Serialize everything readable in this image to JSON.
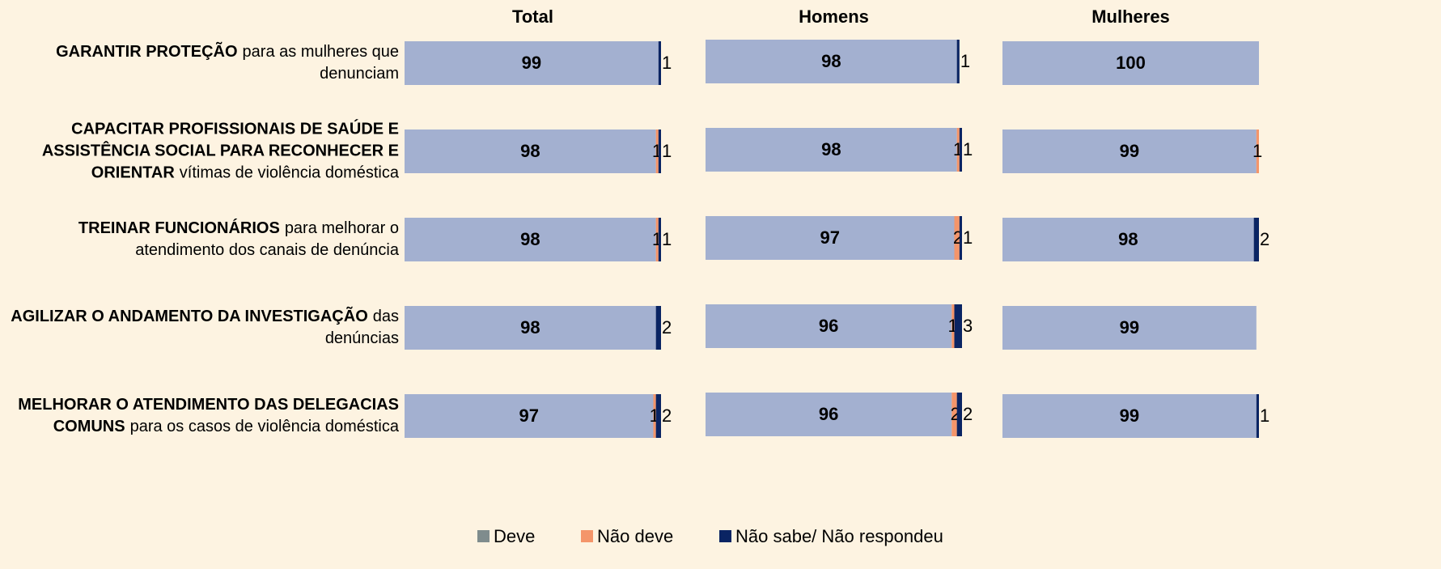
{
  "chart_data": {
    "type": "bar",
    "stacked": true,
    "orientation": "horizontal",
    "categories": [
      [
        "GARANTIR PROTEÇÃO",
        "para as mulheres que denunciam"
      ],
      [
        "CAPACITAR PROFISSIONAIS DE SAÚDE E ASSISTÊNCIA SOCIAL PARA RECONHECER E ORIENTAR",
        "vítimas de violência doméstica"
      ],
      [
        "TREINAR FUNCIONÁRIOS",
        "para melhorar o atendimento dos canais de denúncia"
      ],
      [
        "AGILIZAR O ANDAMENTO DA INVESTIGAÇÃO",
        "das denúncias"
      ],
      [
        "MELHORAR O ATENDIMENTO DAS DELEGACIAS COMUNS",
        "para os casos de violência doméstica"
      ]
    ],
    "series": [
      {
        "name": "Deve",
        "color": "#a3b0d0",
        "legend_color": "#7f8c8d"
      },
      {
        "name": "Não deve",
        "color": "#f4956a"
      },
      {
        "name": "Não sabe/ Não respondeu",
        "color": "#0a2463"
      }
    ],
    "xlim": [
      0,
      100
    ],
    "panels": [
      {
        "title": "Total",
        "values": [
          [
            99,
            98,
            98,
            98,
            97
          ],
          [
            null,
            1,
            1,
            null,
            1
          ],
          [
            1,
            1,
            1,
            2,
            2
          ]
        ]
      },
      {
        "title": "Homens",
        "values": [
          [
            98,
            98,
            97,
            96,
            96
          ],
          [
            null,
            1,
            2,
            1,
            2
          ],
          [
            1,
            1,
            1,
            3,
            2
          ]
        ]
      },
      {
        "title": "Mulheres",
        "values": [
          [
            100,
            99,
            98,
            99,
            99
          ],
          [
            null,
            1,
            null,
            null,
            null
          ],
          [
            null,
            null,
            2,
            null,
            1
          ]
        ]
      }
    ]
  }
}
